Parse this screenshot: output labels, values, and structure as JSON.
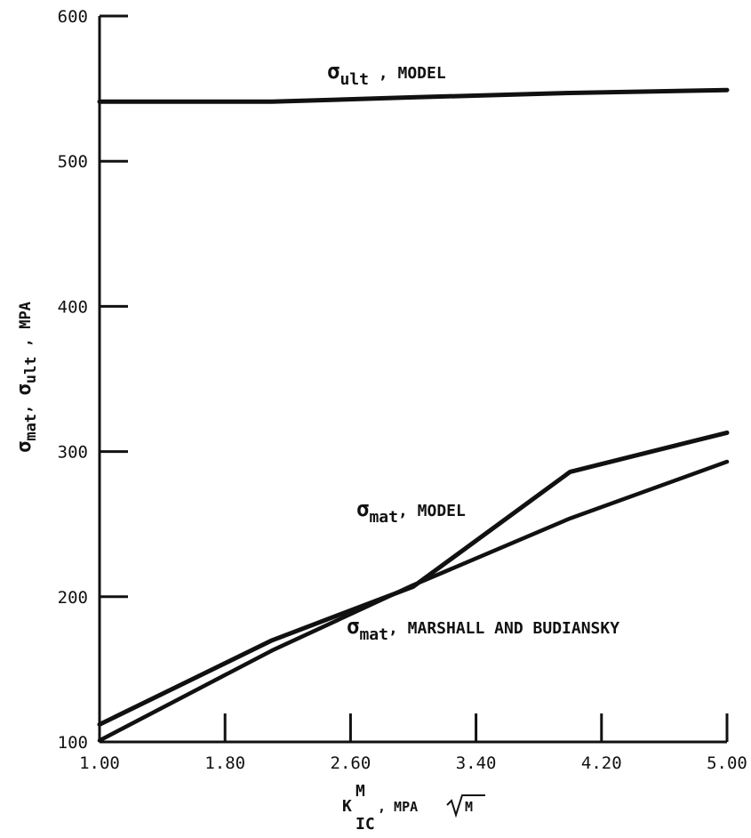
{
  "chart_data": {
    "type": "line",
    "xlabel": "K^M_IC, MPa√M",
    "ylabel": "σmat, σult, MPa",
    "xlim": [
      1.0,
      5.0
    ],
    "ylim": [
      100,
      600
    ],
    "x_ticks": [
      1.0,
      1.8,
      2.6,
      3.4,
      4.2,
      5.0
    ],
    "x_tick_labels": [
      "1.00",
      "1.80",
      "2.60",
      "3.40",
      "4.20",
      "5.00"
    ],
    "y_ticks": [
      100,
      200,
      300,
      400,
      500,
      600
    ],
    "y_tick_labels": [
      "100",
      "200",
      "300",
      "400",
      "500",
      "600"
    ],
    "grid": false,
    "series": [
      {
        "name": "σult, MODEL",
        "x": [
          1.0,
          2.1,
          3.0,
          4.0,
          5.0
        ],
        "y": [
          541,
          541,
          544,
          547,
          549
        ]
      },
      {
        "name": "σmat, MODEL",
        "x": [
          1.0,
          2.1,
          3.0,
          4.0,
          5.0
        ],
        "y": [
          112,
          170,
          207,
          286,
          313
        ]
      },
      {
        "name": "σmat, MARSHALL AND BUDIANSKY",
        "x": [
          1.0,
          2.1,
          3.0,
          4.0,
          5.0
        ],
        "y": [
          101,
          163,
          208,
          254,
          293
        ]
      }
    ],
    "annotations": {
      "ult_model": {
        "sigma": "σ",
        "sub": "ult",
        "text": " , MODEL"
      },
      "mat_model": {
        "sigma": "σ",
        "sub": "mat",
        "text": ", MODEL"
      },
      "mat_mb": {
        "sigma": "σ",
        "sub": "mat",
        "text": ", MARSHALL AND BUDIANSKY"
      }
    },
    "ylabel_parts": {
      "s1": "σ",
      "sub1": "mat",
      "sep1": ", ",
      "s2": "σ",
      "sub2": "ult",
      "tail": " , MPA"
    },
    "xlabel_parts": {
      "k": "K",
      "sup": "M",
      "sub": "IC",
      "tail": " , MPA",
      "root": "M"
    }
  }
}
